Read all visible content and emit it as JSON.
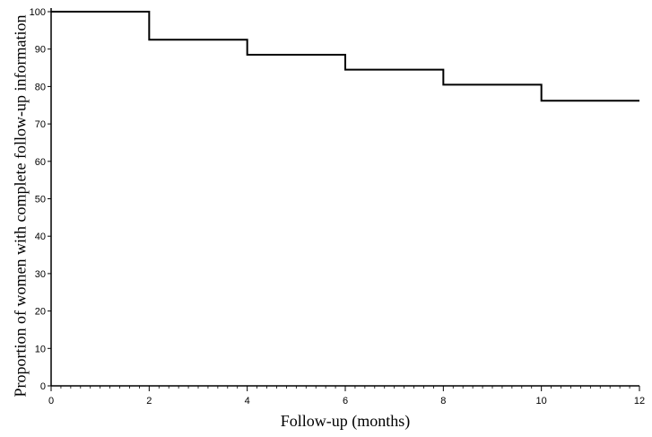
{
  "chart_data": {
    "type": "line",
    "step": true,
    "xlabel": "Follow-up (months)",
    "ylabel": "Proportion of women with complete follow-up information",
    "xlim": [
      0,
      12
    ],
    "ylim": [
      0,
      100
    ],
    "x_major_ticks": [
      0,
      2,
      4,
      6,
      8,
      10,
      12
    ],
    "x_minor_step": 0.2,
    "y_ticks": [
      0,
      10,
      20,
      30,
      40,
      50,
      60,
      70,
      80,
      90,
      100
    ],
    "grid": false,
    "series": [
      {
        "x": [
          0,
          2,
          4,
          6,
          8,
          10,
          12
        ],
        "y": [
          100,
          92.5,
          88.5,
          84.5,
          80.5,
          76.2,
          76.2
        ]
      }
    ],
    "line_color": "#000000"
  }
}
